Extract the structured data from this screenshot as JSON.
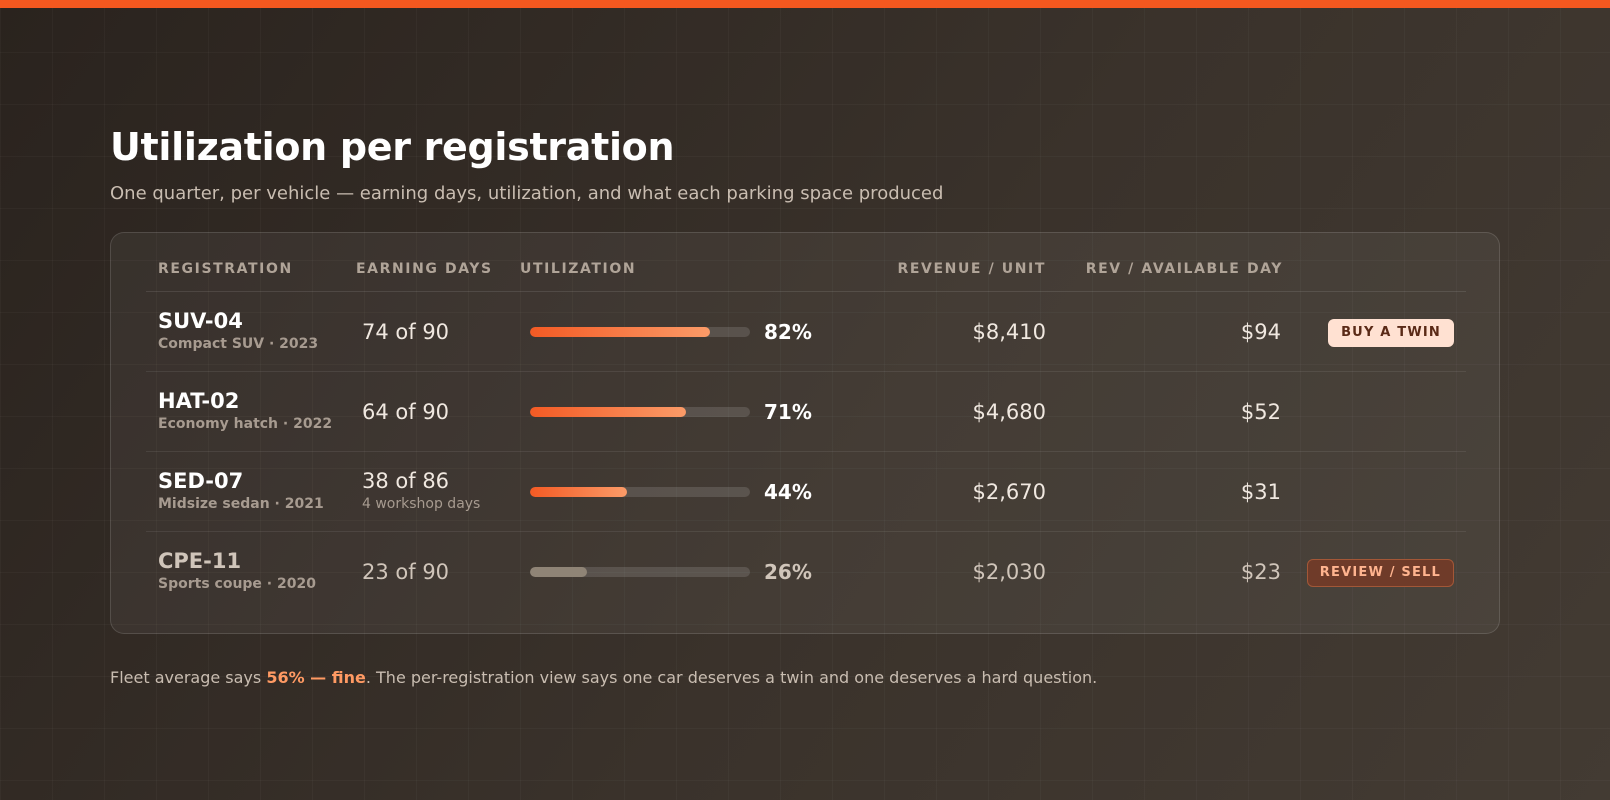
{
  "header": {
    "title": "Utilization per registration",
    "subtitle": "One quarter, per vehicle — earning days, utilization, and what each parking space produced"
  },
  "table": {
    "columns": [
      "REGISTRATION",
      "EARNING DAYS",
      "UTILIZATION",
      "REVENUE / UNIT",
      "REV / AVAILABLE DAY"
    ],
    "rows": [
      {
        "id": "SUV-04",
        "model": "Compact SUV · 2023",
        "earning_days": "74 of 90",
        "utilization_pct": 82,
        "utilization_label": "82%",
        "revenue_unit": "$8,410",
        "rev_available_day": "$94",
        "action": "BUY A TWIN"
      },
      {
        "id": "HAT-02",
        "model": "Economy hatch · 2022",
        "earning_days": "64 of 90",
        "utilization_pct": 71,
        "utilization_label": "71%",
        "revenue_unit": "$4,680",
        "rev_available_day": "$52"
      },
      {
        "id": "SED-07",
        "model": "Midsize sedan · 2021",
        "earning_days": "38 of 86",
        "earning_note": "4 workshop days",
        "utilization_pct": 44,
        "utilization_label": "44%",
        "revenue_unit": "$2,670",
        "rev_available_day": "$31"
      },
      {
        "id": "CPE-11",
        "model": "Sports coupe · 2020",
        "earning_days": "23 of 90",
        "utilization_pct": 26,
        "utilization_label": "26%",
        "revenue_unit": "$2,030",
        "rev_available_day": "$23",
        "action": "REVIEW / SELL"
      }
    ]
  },
  "footnote": {
    "before": "Fleet average says ",
    "highlight": "56% — fine",
    "after": ". The per-registration view says one car deserves a twin and one deserves a hard question."
  },
  "colors": {
    "accent": "#f4581f",
    "bar_fill": "#f35a24",
    "bar_muted": "#8f8476"
  }
}
